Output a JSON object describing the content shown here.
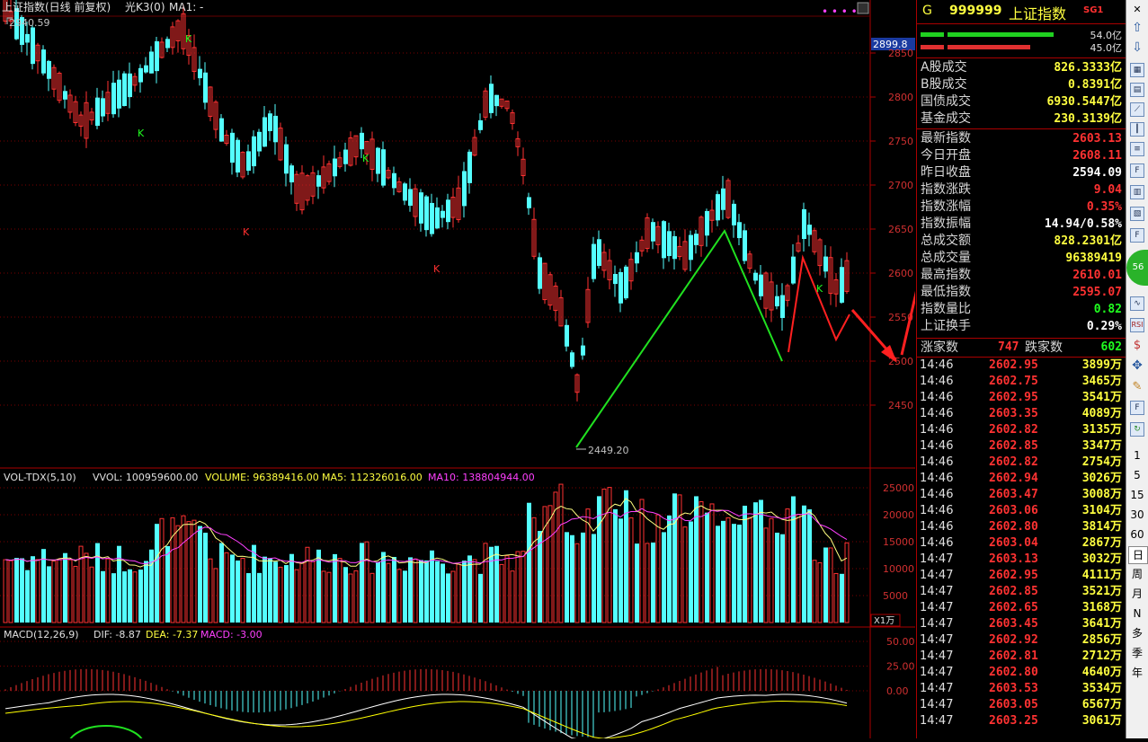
{
  "chart_header": {
    "title": "上证指数(日线 前复权)",
    "k3": "光K3(0)",
    "ma": "MA1: -",
    "max_label": "2940.59",
    "min_label": "2449.20",
    "current_price_tag": "2899.8"
  },
  "price_axis": [
    "2850",
    "2800",
    "2750",
    "2700",
    "2650",
    "2600",
    "2550",
    "2500",
    "2450"
  ],
  "volume_header": {
    "name": "VOL-TDX(5,10)",
    "vvol": "VVOL: 100959600.00",
    "volume": "VOLUME: 96389416.00",
    "ma5": "MA5: 112326016.00",
    "ma10": "MA10: 138804944.00"
  },
  "volume_axis": [
    "25000",
    "20000",
    "15000",
    "10000",
    "5000"
  ],
  "volume_unit": "X1万",
  "macd_header": {
    "name": "MACD(12,26,9)",
    "dif": "DIF: -8.87",
    "dea": "DEA: -7.37",
    "macd": "MACD: -3.00"
  },
  "macd_axis": [
    "50.00",
    "25.00",
    "0.00"
  ],
  "quote": {
    "letter": "G",
    "code": "999999",
    "name": "上证指数",
    "badge": "SG1",
    "buy_vol": "54.0亿",
    "sell_vol": "45.0亿",
    "rows": [
      {
        "label": "A股成交",
        "value": "826.3333亿"
      },
      {
        "label": "B股成交",
        "value": "0.8391亿"
      },
      {
        "label": "国债成交",
        "value": "6930.5447亿"
      },
      {
        "label": "基金成交",
        "value": "230.3139亿"
      },
      {
        "label": "最新指数",
        "value": "2603.13"
      },
      {
        "label": "今日开盘",
        "value": "2608.11"
      },
      {
        "label": "昨日收盘",
        "value": "2594.09"
      },
      {
        "label": "指数涨跌",
        "value": "9.04"
      },
      {
        "label": "指数涨幅",
        "value": "0.35%"
      },
      {
        "label": "指数振幅",
        "value": "14.94/0.58%"
      },
      {
        "label": "总成交额",
        "value": "828.2301亿"
      },
      {
        "label": "总成交量",
        "value": "96389419"
      },
      {
        "label": "最高指数",
        "value": "2610.01"
      },
      {
        "label": "最低指数",
        "value": "2595.07"
      },
      {
        "label": "指数量比",
        "value": "0.82"
      },
      {
        "label": "上证换手",
        "value": "0.29%"
      }
    ],
    "up_label": "涨家数",
    "up_count": "747",
    "down_label": "跌家数",
    "down_count": "602"
  },
  "ticks": [
    {
      "t": "14:46",
      "p": "2602.95",
      "v": "3899万"
    },
    {
      "t": "14:46",
      "p": "2602.75",
      "v": "3465万"
    },
    {
      "t": "14:46",
      "p": "2602.95",
      "v": "3541万"
    },
    {
      "t": "14:46",
      "p": "2603.35",
      "v": "4089万"
    },
    {
      "t": "14:46",
      "p": "2602.82",
      "v": "3135万"
    },
    {
      "t": "14:46",
      "p": "2602.85",
      "v": "3347万"
    },
    {
      "t": "14:46",
      "p": "2602.82",
      "v": "2754万"
    },
    {
      "t": "14:46",
      "p": "2602.94",
      "v": "3026万"
    },
    {
      "t": "14:46",
      "p": "2603.47",
      "v": "3008万"
    },
    {
      "t": "14:46",
      "p": "2603.06",
      "v": "3104万"
    },
    {
      "t": "14:46",
      "p": "2602.80",
      "v": "3814万"
    },
    {
      "t": "14:46",
      "p": "2603.04",
      "v": "2867万"
    },
    {
      "t": "14:47",
      "p": "2603.13",
      "v": "3032万"
    },
    {
      "t": "14:47",
      "p": "2602.95",
      "v": "4111万"
    },
    {
      "t": "14:47",
      "p": "2602.85",
      "v": "3521万"
    },
    {
      "t": "14:47",
      "p": "2602.65",
      "v": "3168万"
    },
    {
      "t": "14:47",
      "p": "2603.45",
      "v": "3641万"
    },
    {
      "t": "14:47",
      "p": "2602.92",
      "v": "2856万"
    },
    {
      "t": "14:47",
      "p": "2602.81",
      "v": "2712万"
    },
    {
      "t": "14:47",
      "p": "2602.80",
      "v": "4640万"
    },
    {
      "t": "14:47",
      "p": "2603.53",
      "v": "3534万"
    },
    {
      "t": "14:47",
      "p": "2603.05",
      "v": "6567万"
    },
    {
      "t": "14:47",
      "p": "2603.25",
      "v": "3061万"
    }
  ],
  "toolbar": {
    "periods": [
      "1",
      "5",
      "15",
      "30",
      "60",
      "日",
      "周",
      "月",
      "N",
      "多",
      "季",
      "年"
    ]
  },
  "colors": {
    "up": "#ff3232",
    "down": "#54ffff",
    "ma5": "#ffff00",
    "ma10": "#ff00ff",
    "grid": "#8b0000"
  }
}
